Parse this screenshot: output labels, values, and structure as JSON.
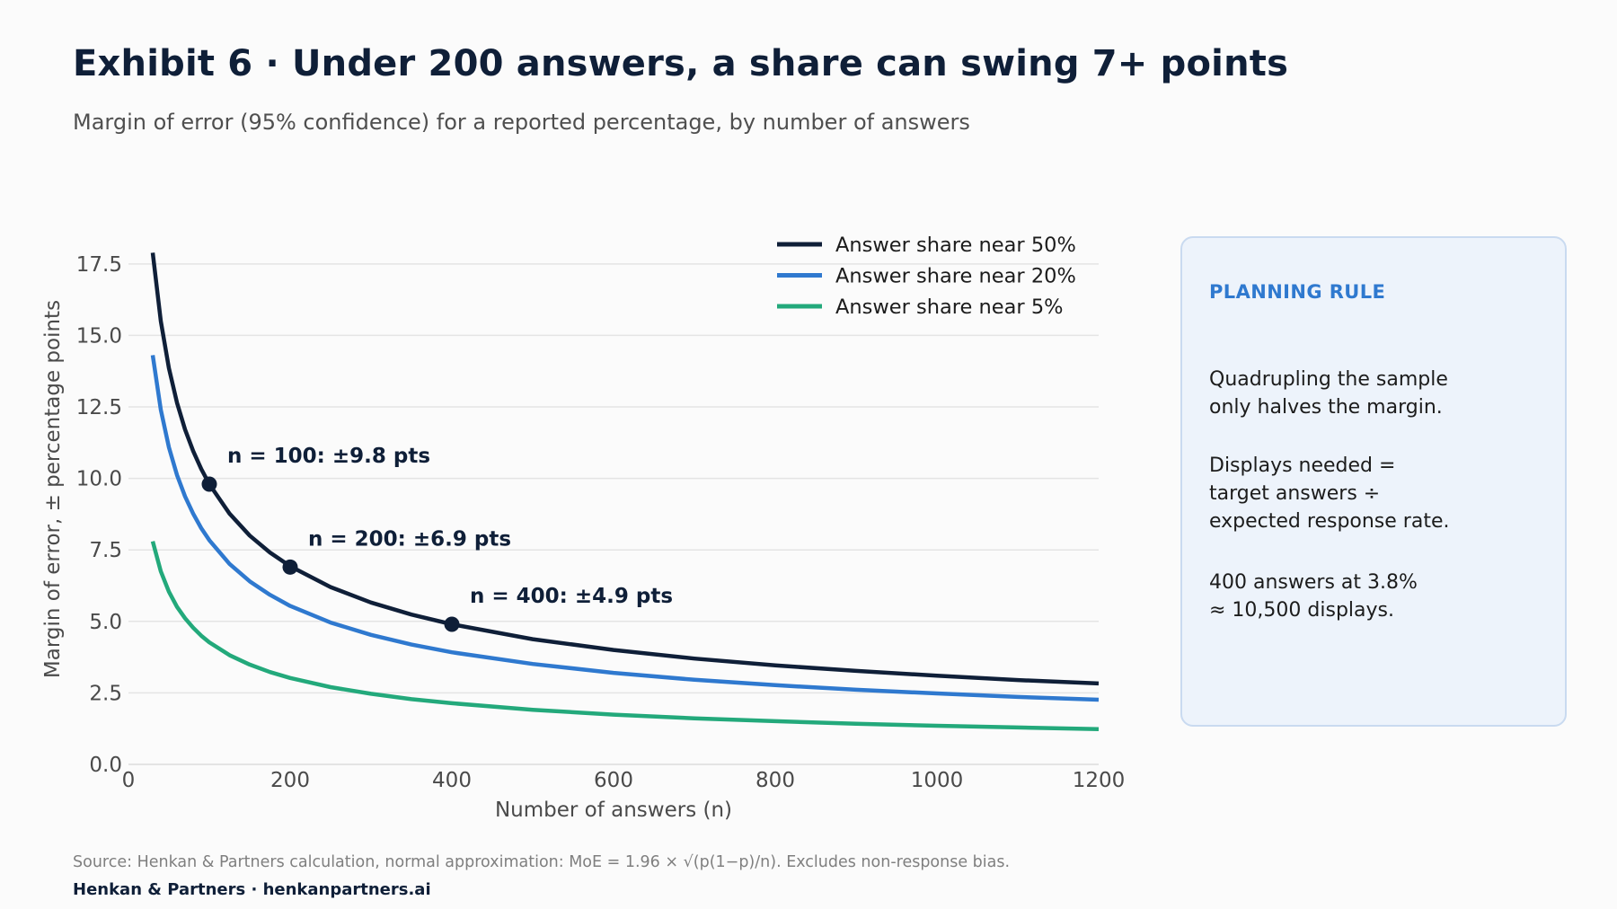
{
  "title": "Exhibit 6 · Under 200 answers, a share can swing 7+ points",
  "subtitle": "Margin of error (95% confidence) for a reported percentage, by number of answers",
  "chart_data": {
    "type": "line",
    "xlabel": "Number of answers (n)",
    "ylabel": "Margin of error, ± percentage points",
    "xlim": [
      0,
      1200
    ],
    "ylim": [
      0,
      18.5
    ],
    "x_ticks": [
      0,
      200,
      400,
      600,
      800,
      1000,
      1200
    ],
    "y_ticks": [
      "0.0",
      "2.5",
      "5.0",
      "7.5",
      "10.0",
      "12.5",
      "15.0",
      "17.5"
    ],
    "y_tick_values": [
      0,
      2.5,
      5,
      7.5,
      10,
      12.5,
      15,
      17.5
    ],
    "grid": "horizontal",
    "legend_position": "top-right",
    "x": [
      30,
      40,
      50,
      60,
      70,
      80,
      90,
      100,
      125,
      150,
      175,
      200,
      250,
      300,
      350,
      400,
      500,
      600,
      700,
      800,
      900,
      1000,
      1100,
      1200
    ],
    "series": [
      {
        "name": "Answer share near 50%",
        "color": "#0f1f38",
        "values": [
          17.89,
          15.5,
          13.86,
          12.65,
          11.71,
          10.96,
          10.33,
          9.8,
          8.77,
          8.0,
          7.41,
          6.93,
          6.2,
          5.66,
          5.24,
          4.9,
          4.38,
          4.0,
          3.7,
          3.46,
          3.27,
          3.1,
          2.95,
          2.83
        ]
      },
      {
        "name": "Answer share near 20%",
        "color": "#2f79cf",
        "values": [
          14.31,
          12.4,
          11.09,
          10.12,
          9.37,
          8.77,
          8.26,
          7.84,
          7.01,
          6.4,
          5.93,
          5.54,
          4.96,
          4.53,
          4.19,
          3.92,
          3.51,
          3.2,
          2.96,
          2.77,
          2.61,
          2.48,
          2.36,
          2.26
        ]
      },
      {
        "name": "Answer share near 5%",
        "color": "#23a97b",
        "values": [
          7.8,
          6.75,
          6.04,
          5.51,
          5.11,
          4.78,
          4.5,
          4.27,
          3.82,
          3.49,
          3.23,
          3.02,
          2.7,
          2.47,
          2.28,
          2.14,
          1.91,
          1.74,
          1.61,
          1.51,
          1.42,
          1.35,
          1.29,
          1.23
        ]
      }
    ],
    "annotations": [
      {
        "x": 100,
        "y": 9.8,
        "label": "n = 100: ±9.8 pts"
      },
      {
        "x": 200,
        "y": 6.9,
        "label": "n = 200: ±6.9 pts"
      },
      {
        "x": 400,
        "y": 4.9,
        "label": "n = 400: ±4.9 pts"
      }
    ]
  },
  "panel": {
    "heading": "PLANNING RULE",
    "paragraphs": [
      "Quadrupling the sample\nonly halves the margin.",
      "Displays needed =\ntarget answers ÷\nexpected response rate.",
      "400 answers at 3.8%\n≈ 10,500 displays."
    ]
  },
  "source": "Source: Henkan & Partners calculation, normal approximation: MoE = 1.96 × √(p(1−p)/n). Excludes non-response bias.",
  "brand": "Henkan & Partners · henkanpartners.ai"
}
